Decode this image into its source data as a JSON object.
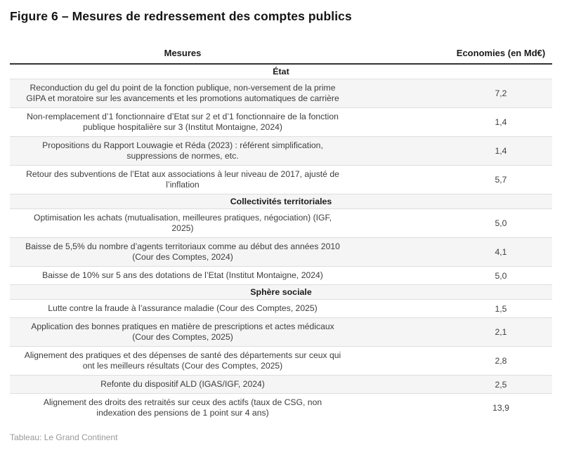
{
  "title": "Figure 6 – Mesures de redressement des comptes publics",
  "footer": "Tableau: Le Grand Continent",
  "columns": {
    "measures": "Mesures",
    "economies": "Economies (en Md€)"
  },
  "colors": {
    "stripe": "#f5f5f5",
    "row_border": "#dedede",
    "header_rule": "#333333",
    "body_text": "#3d3d3d",
    "footer_text": "#999999"
  },
  "chart_data": {
    "type": "table",
    "title": "Figure 6 – Mesures de redressement des comptes publics",
    "columns": [
      "Mesures",
      "Economies (en Md€)"
    ],
    "sections": [
      {
        "name": "État",
        "rows": [
          {
            "measure": "Reconduction du gel du point de la fonction publique, non-versement de la prime\nGIPA et moratoire sur les avancements et les promotions automatiques de carrière",
            "value": "7,2"
          },
          {
            "measure": "Non-remplacement d’1 fonctionnaire d’Etat sur 2 et d’1 fonctionnaire de la fonction\npublique hospitalière sur 3 (Institut Montaigne, 2024)",
            "value": "1,4"
          },
          {
            "measure": "Propositions du Rapport Louwagie et Réda (2023) : référent simplification,\nsuppressions de normes, etc.",
            "value": "1,4"
          },
          {
            "measure": "Retour des subventions de l’Etat aux associations à leur niveau de 2017, ajusté de\nl’inflation",
            "value": "5,7"
          }
        ]
      },
      {
        "name": "Collectivités territoriales",
        "rows": [
          {
            "measure": "Optimisation les achats (mutualisation, meilleures pratiques, négociation) (IGF,\n2025)",
            "value": "5,0"
          },
          {
            "measure": "Baisse de 5,5% du nombre d’agents territoriaux comme au début des années 2010\n(Cour des Comptes, 2024)",
            "value": "4,1"
          },
          {
            "measure": "Baisse de 10% sur 5 ans des dotations de l’Etat (Institut Montaigne, 2024)",
            "value": "5,0"
          }
        ]
      },
      {
        "name": "Sphère sociale",
        "rows": [
          {
            "measure": "Lutte contre la fraude à l’assurance maladie (Cour des Comptes, 2025)",
            "value": "1,5"
          },
          {
            "measure": "Application des bonnes pratiques en matière de prescriptions et actes médicaux\n(Cour des Comptes, 2025)",
            "value": "2,1"
          },
          {
            "measure": "Alignement des pratiques et des dépenses de santé des départements sur ceux qui\nont les meilleurs résultats (Cour des Comptes, 2025)",
            "value": "2,8"
          },
          {
            "measure": "Refonte du dispositif ALD (IGAS/IGF, 2024)",
            "value": "2,5"
          },
          {
            "measure": "Alignement des droits des retraités sur ceux des actifs (taux de CSG, non\nindexation des pensions de 1 point sur 4 ans)",
            "value": "13,9"
          }
        ]
      }
    ]
  }
}
